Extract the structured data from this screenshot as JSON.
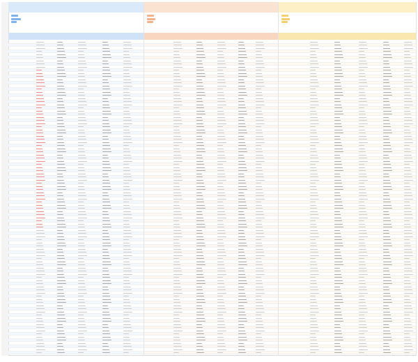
{
  "panels": [
    {
      "title": "",
      "accent": "#3a78c2"
    },
    {
      "title": "",
      "accent": "#d4733d"
    },
    {
      "title": "",
      "accent": "#c49a24"
    }
  ],
  "row_labels": [
    "",
    "",
    "",
    "",
    "",
    ""
  ],
  "footer": "",
  "rows": 100
}
